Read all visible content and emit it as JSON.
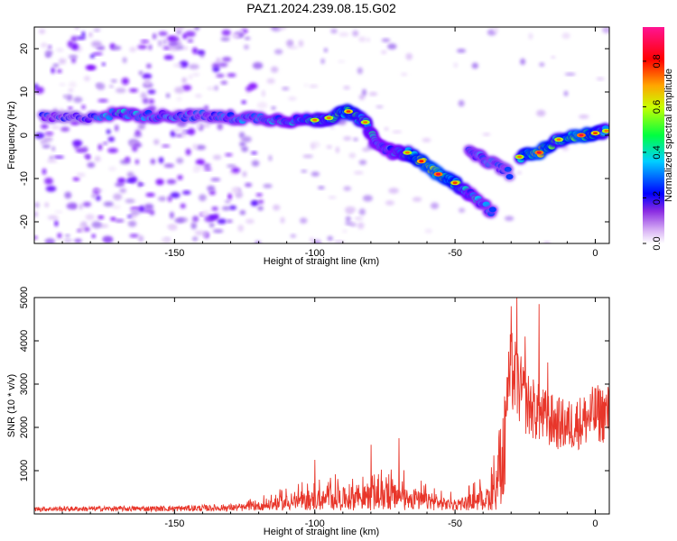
{
  "page_title": "PAZ1.2024.239.08.15.G02",
  "chart_data": [
    {
      "type": "heatmap",
      "xlabel": "Height of straight line (km)",
      "ylabel": "Frequency (Hz)",
      "xlim": [
        -200,
        5
      ],
      "ylim": [
        -25,
        25
      ],
      "xticks": [
        -150,
        -100,
        -50,
        0
      ],
      "yticks": [
        -20,
        -10,
        0,
        10,
        20
      ],
      "colorbar": {
        "label": "Normalized spectral amplitude",
        "ticks": [
          0.0,
          0.2,
          0.4,
          0.6,
          0.8
        ],
        "range": [
          0,
          0.95
        ],
        "colormap": [
          "#ffffff",
          "#e2c8f8",
          "#a070f0",
          "#7a00ff",
          "#0000ff",
          "#00c8ff",
          "#00ff60",
          "#c8ff00",
          "#ffa000",
          "#ff0000",
          "#ff1493"
        ]
      },
      "ridge": [
        {
          "x": -197,
          "y": 4,
          "a": 0.25
        },
        {
          "x": -185,
          "y": 4,
          "a": 0.2
        },
        {
          "x": -170,
          "y": 5,
          "a": 0.35
        },
        {
          "x": -160,
          "y": 4.5,
          "a": 0.3
        },
        {
          "x": -150,
          "y": 4.5,
          "a": 0.3
        },
        {
          "x": -140,
          "y": 4.5,
          "a": 0.25
        },
        {
          "x": -130,
          "y": 4,
          "a": 0.3
        },
        {
          "x": -120,
          "y": 4,
          "a": 0.3
        },
        {
          "x": -110,
          "y": 3.5,
          "a": 0.35
        },
        {
          "x": -100,
          "y": 3.5,
          "a": 0.4
        },
        {
          "x": -95,
          "y": 4,
          "a": 0.4
        },
        {
          "x": -88,
          "y": 5.5,
          "a": 0.45
        },
        {
          "x": -82,
          "y": 3,
          "a": 0.4
        },
        {
          "x": -78,
          "y": -2,
          "a": 0.35
        },
        {
          "x": -72,
          "y": -4,
          "a": 0.35
        },
        {
          "x": -67,
          "y": -4,
          "a": 0.4
        },
        {
          "x": -62,
          "y": -6,
          "a": 0.5
        },
        {
          "x": -56,
          "y": -9,
          "a": 0.55
        },
        {
          "x": -50,
          "y": -11,
          "a": 0.45
        },
        {
          "x": -44,
          "y": -14,
          "a": 0.35
        },
        {
          "x": -36,
          "y": -18,
          "a": 0.3
        },
        {
          "x": -45,
          "y": -4,
          "a": 0.3
        },
        {
          "x": -38,
          "y": -6,
          "a": 0.3
        },
        {
          "x": -30,
          "y": -9,
          "a": 0.25
        },
        {
          "x": -27,
          "y": -5,
          "a": 0.4
        },
        {
          "x": -20,
          "y": -4,
          "a": 0.55
        },
        {
          "x": -13,
          "y": -1,
          "a": 0.4
        },
        {
          "x": -5,
          "y": 0,
          "a": 0.55
        },
        {
          "x": 0,
          "y": 0.5,
          "a": 0.45
        },
        {
          "x": 4,
          "y": 1,
          "a": 0.4
        }
      ]
    },
    {
      "type": "line",
      "xlabel": "Height of straight line (km)",
      "ylabel": "SNR (10 * v/v)",
      "xlim": [
        -200,
        5
      ],
      "ylim": [
        0,
        5000
      ],
      "xticks": [
        -150,
        -100,
        -50,
        0
      ],
      "yticks": [
        1000,
        2000,
        3000,
        4000,
        5000
      ],
      "color": "#e8362a",
      "envelope": [
        {
          "x": -200,
          "y": 150
        },
        {
          "x": -150,
          "y": 170
        },
        {
          "x": -125,
          "y": 220
        },
        {
          "x": -110,
          "y": 550
        },
        {
          "x": -100,
          "y": 750
        },
        {
          "x": -85,
          "y": 950
        },
        {
          "x": -70,
          "y": 1000
        },
        {
          "x": -60,
          "y": 650
        },
        {
          "x": -50,
          "y": 400
        },
        {
          "x": -38,
          "y": 900
        },
        {
          "x": -34,
          "y": 1900
        },
        {
          "x": -30,
          "y": 3600
        },
        {
          "x": -25,
          "y": 2800
        },
        {
          "x": -20,
          "y": 2500
        },
        {
          "x": -15,
          "y": 2300
        },
        {
          "x": -10,
          "y": 2200
        },
        {
          "x": -5,
          "y": 2300
        },
        {
          "x": 0,
          "y": 2500
        },
        {
          "x": 5,
          "y": 2500
        }
      ],
      "spikes": [
        {
          "x": -30,
          "y": 4800
        },
        {
          "x": -28,
          "y": 5000
        },
        {
          "x": -25,
          "y": 4100
        },
        {
          "x": -20,
          "y": 4850
        },
        {
          "x": -17,
          "y": 3500
        },
        {
          "x": -70,
          "y": 1750
        },
        {
          "x": -80,
          "y": 1600
        },
        {
          "x": -100,
          "y": 1250
        }
      ]
    }
  ]
}
